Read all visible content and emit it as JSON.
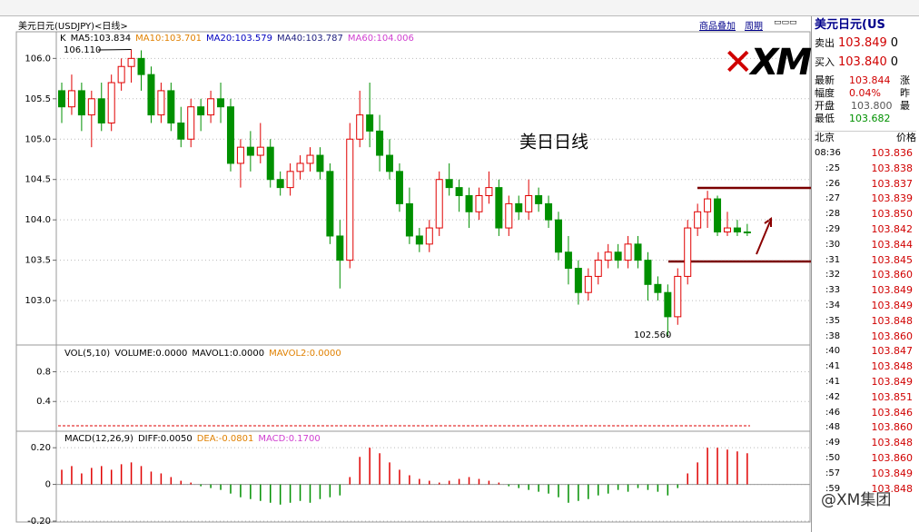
{
  "window_title": "美元日元(USDJPY)<日线>",
  "toolbar": {
    "overlay": "商品叠加",
    "period": "周期"
  },
  "ma_header": {
    "k": "K",
    "items": [
      {
        "text": "MA5:103.834",
        "color": "#000000"
      },
      {
        "text": "MA10:103.701",
        "color": "#e08000"
      },
      {
        "text": "MA20:103.579",
        "color": "#0000c0"
      },
      {
        "text": "MA40:103.787",
        "color": "#202080"
      },
      {
        "text": "MA60:104.006",
        "color": "#d040d0"
      }
    ]
  },
  "vol_header": [
    {
      "text": "VOL(5,10)",
      "color": "#000000"
    },
    {
      "text": "VOLUME:0.0000",
      "color": "#000000"
    },
    {
      "text": "MAVOL1:0.0000",
      "color": "#000000"
    },
    {
      "text": "MAVOL2:0.0000",
      "color": "#e08000"
    }
  ],
  "macd_header": [
    {
      "text": "MACD(12,26,9)",
      "color": "#000000"
    },
    {
      "text": "DIFF:0.0050",
      "color": "#000000"
    },
    {
      "text": "DEA:-0.0801",
      "color": "#e08000"
    },
    {
      "text": "MACD:0.1700",
      "color": "#d040d0"
    }
  ],
  "logo": "XM",
  "watermark": "@XM集团",
  "chart_data": {
    "type": "candlestick",
    "annotation": "美日日线",
    "high_label": "106.110",
    "low_label": "102.560",
    "ylim": [
      102.45,
      106.33
    ],
    "yticks": [
      {
        "value": 103,
        "label": "103.0"
      },
      {
        "value": 103.5,
        "label": "103.5"
      },
      {
        "value": 104,
        "label": "104.0"
      },
      {
        "value": 104.5,
        "label": "104.5"
      },
      {
        "value": 105,
        "label": "105.0"
      },
      {
        "value": 105.5,
        "label": "105.5"
      },
      {
        "value": 106,
        "label": "106.0"
      }
    ],
    "up_color": "#e00000",
    "down_color": "#009000",
    "candles": [
      [
        105.6,
        105.4,
        105.7,
        105.2
      ],
      [
        105.4,
        105.6,
        105.8,
        105.3
      ],
      [
        105.6,
        105.3,
        105.7,
        105.1
      ],
      [
        105.3,
        105.5,
        105.6,
        104.9
      ],
      [
        105.5,
        105.2,
        105.7,
        105.1
      ],
      [
        105.2,
        105.7,
        105.8,
        105.1
      ],
      [
        105.7,
        105.9,
        106.0,
        105.6
      ],
      [
        105.9,
        106.0,
        106.11,
        105.7
      ],
      [
        106.0,
        105.8,
        106.1,
        105.6
      ],
      [
        105.8,
        105.3,
        105.9,
        105.2
      ],
      [
        105.3,
        105.6,
        105.7,
        105.2
      ],
      [
        105.6,
        105.2,
        105.7,
        105.1
      ],
      [
        105.2,
        105.0,
        105.4,
        104.9
      ],
      [
        105.0,
        105.4,
        105.5,
        104.9
      ],
      [
        105.4,
        105.3,
        105.5,
        105.1
      ],
      [
        105.3,
        105.5,
        105.6,
        105.2
      ],
      [
        105.5,
        105.4,
        105.7,
        105.2
      ],
      [
        105.4,
        104.7,
        105.5,
        104.6
      ],
      [
        104.7,
        104.9,
        105.0,
        104.4
      ],
      [
        104.9,
        104.8,
        105.1,
        104.6
      ],
      [
        104.8,
        104.9,
        105.2,
        104.7
      ],
      [
        104.9,
        104.5,
        105.0,
        104.4
      ],
      [
        104.5,
        104.4,
        104.6,
        104.3
      ],
      [
        104.4,
        104.6,
        104.7,
        104.3
      ],
      [
        104.6,
        104.7,
        104.8,
        104.5
      ],
      [
        104.7,
        104.8,
        104.9,
        104.6
      ],
      [
        104.8,
        104.6,
        104.9,
        104.5
      ],
      [
        104.6,
        103.8,
        104.7,
        103.7
      ],
      [
        103.8,
        103.5,
        104.0,
        103.15
      ],
      [
        103.5,
        105.0,
        105.2,
        103.4
      ],
      [
        105.0,
        105.3,
        105.6,
        104.9
      ],
      [
        105.3,
        105.1,
        105.7,
        104.9
      ],
      [
        105.1,
        104.8,
        105.3,
        104.6
      ],
      [
        104.8,
        104.6,
        105.0,
        104.5
      ],
      [
        104.6,
        104.2,
        104.7,
        104.1
      ],
      [
        104.2,
        103.8,
        104.4,
        103.7
      ],
      [
        103.8,
        103.7,
        103.9,
        103.6
      ],
      [
        103.7,
        103.9,
        104.0,
        103.6
      ],
      [
        103.9,
        104.5,
        104.6,
        103.8
      ],
      [
        104.5,
        104.4,
        104.7,
        104.3
      ],
      [
        104.4,
        104.3,
        104.5,
        104.1
      ],
      [
        104.3,
        104.1,
        104.4,
        103.9
      ],
      [
        104.1,
        104.3,
        104.4,
        104.0
      ],
      [
        104.3,
        104.4,
        104.6,
        104.2
      ],
      [
        104.4,
        103.9,
        104.5,
        103.8
      ],
      [
        103.9,
        104.2,
        104.3,
        103.8
      ],
      [
        104.2,
        104.1,
        104.3,
        104.0
      ],
      [
        104.1,
        104.3,
        104.5,
        104.0
      ],
      [
        104.3,
        104.2,
        104.4,
        104.1
      ],
      [
        104.2,
        104.0,
        104.3,
        103.9
      ],
      [
        104.0,
        103.6,
        104.1,
        103.5
      ],
      [
        103.6,
        103.4,
        103.8,
        103.2
      ],
      [
        103.4,
        103.1,
        103.5,
        102.95
      ],
      [
        103.1,
        103.3,
        103.4,
        103.0
      ],
      [
        103.3,
        103.5,
        103.6,
        103.2
      ],
      [
        103.5,
        103.6,
        103.7,
        103.4
      ],
      [
        103.6,
        103.5,
        103.7,
        103.4
      ],
      [
        103.5,
        103.7,
        103.8,
        103.4
      ],
      [
        103.7,
        103.5,
        103.8,
        103.4
      ],
      [
        103.5,
        103.2,
        103.6,
        103.0
      ],
      [
        103.2,
        103.1,
        103.3,
        103.0
      ],
      [
        103.1,
        102.8,
        103.2,
        102.56
      ],
      [
        102.8,
        103.3,
        103.4,
        102.7
      ],
      [
        103.3,
        103.9,
        104.0,
        103.2
      ],
      [
        103.9,
        104.1,
        104.2,
        103.8
      ],
      [
        104.1,
        104.26,
        104.36,
        103.9
      ],
      [
        104.26,
        103.85,
        104.3,
        103.8
      ],
      [
        103.85,
        103.9,
        104.1,
        103.8
      ],
      [
        103.9,
        103.85,
        104.0,
        103.8
      ],
      [
        103.85,
        103.84,
        103.95,
        103.8
      ]
    ],
    "vol_ylim": [
      0,
      1.16
    ],
    "vol_yticks": [
      0.4,
      0.8
    ],
    "macd_ylim": [
      -0.205,
      0.29
    ],
    "macd_yticks": [
      {
        "value": -0.2,
        "label": "-0.20"
      },
      {
        "value": 0,
        "label": "0"
      },
      {
        "value": 0.2,
        "label": "0.20"
      }
    ],
    "macd": [
      0.08,
      0.1,
      0.06,
      0.09,
      0.1,
      0.08,
      0.11,
      0.12,
      0.1,
      0.07,
      0.06,
      0.04,
      0.02,
      0.01,
      -0.01,
      -0.02,
      -0.03,
      -0.05,
      -0.07,
      -0.08,
      -0.09,
      -0.1,
      -0.11,
      -0.1,
      -0.09,
      -0.1,
      -0.08,
      -0.07,
      -0.06,
      0.04,
      0.15,
      0.2,
      0.17,
      0.12,
      0.08,
      0.05,
      0.03,
      0.02,
      0.01,
      0.02,
      0.03,
      0.04,
      0.03,
      0.02,
      0.01,
      -0.01,
      -0.02,
      -0.03,
      -0.04,
      -0.05,
      -0.07,
      -0.1,
      -0.09,
      -0.08,
      -0.06,
      -0.05,
      -0.03,
      -0.04,
      -0.02,
      -0.03,
      -0.04,
      -0.06,
      -0.02,
      0.06,
      0.12,
      0.2,
      0.2,
      0.19,
      0.18,
      0.17
    ]
  },
  "quote": {
    "title": "美元日元(US",
    "rows": [
      [
        "卖出",
        "103.849",
        "0"
      ],
      [
        "买入",
        "103.840",
        "0"
      ]
    ],
    "stats": [
      [
        "最新",
        "103.844",
        "涨"
      ],
      [
        "幅度",
        "0.04%",
        "昨"
      ],
      [
        "开盘",
        "103.800",
        "最"
      ],
      [
        "最低",
        "103.682",
        ""
      ]
    ],
    "ticks_header": [
      "北京",
      "价格"
    ],
    "ticks": [
      [
        "08:36",
        "103.836"
      ],
      [
        ":25",
        "103.838"
      ],
      [
        ":26",
        "103.837"
      ],
      [
        ":27",
        "103.839"
      ],
      [
        ":28",
        "103.850"
      ],
      [
        ":29",
        "103.842"
      ],
      [
        ":30",
        "103.844"
      ],
      [
        ":31",
        "103.845"
      ],
      [
        ":32",
        "103.860"
      ],
      [
        ":33",
        "103.849"
      ],
      [
        ":34",
        "103.849"
      ],
      [
        ":35",
        "103.848"
      ],
      [
        ":38",
        "103.860"
      ],
      [
        ":40",
        "103.847"
      ],
      [
        ":41",
        "103.848"
      ],
      [
        ":41",
        "103.849"
      ],
      [
        ":42",
        "103.851"
      ],
      [
        ":46",
        "103.846"
      ],
      [
        ":48",
        "103.860"
      ],
      [
        ":49",
        "103.848"
      ],
      [
        ":50",
        "103.860"
      ],
      [
        ":57",
        "103.849"
      ],
      [
        ":59",
        "103.848"
      ]
    ]
  }
}
